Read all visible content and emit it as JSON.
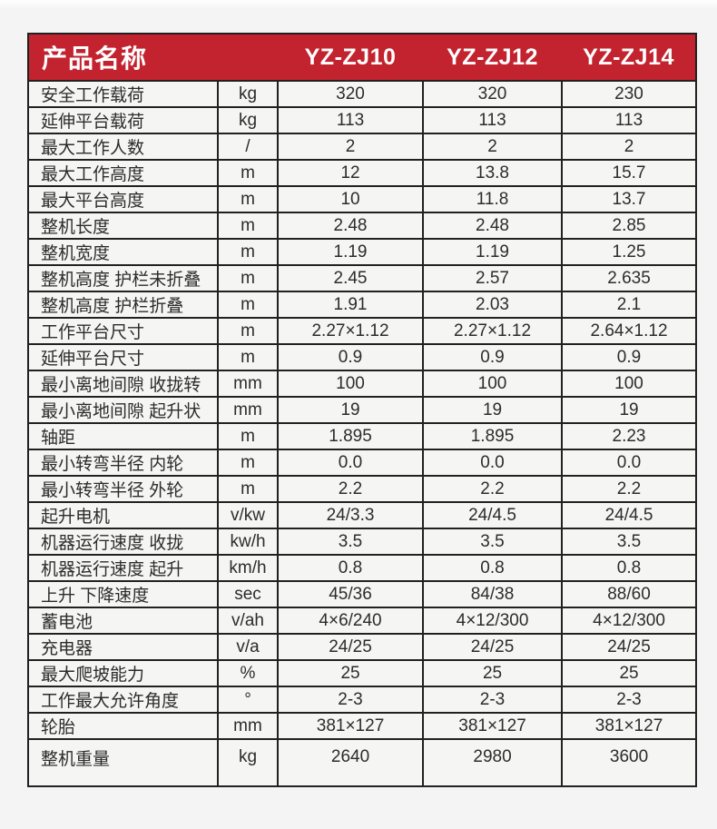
{
  "colors": {
    "header_bg": "#c2232f",
    "header_text": "#ffffff",
    "cell_text": "#2c2c2c",
    "border": "#212121",
    "page_bg": "#f3f4f3",
    "cell_bg": "#f5f5f4"
  },
  "table": {
    "header": {
      "title": "产品名称",
      "models": [
        "YZ-ZJ10",
        "YZ-ZJ12",
        "YZ-ZJ14"
      ]
    },
    "rows": [
      {
        "label": "安全工作载荷",
        "unit": "kg",
        "values": [
          "320",
          "320",
          "230"
        ]
      },
      {
        "label": "延伸平台载荷",
        "unit": "kg",
        "values": [
          "113",
          "113",
          "113"
        ]
      },
      {
        "label": "最大工作人数",
        "unit": "/",
        "values": [
          "2",
          "2",
          "2"
        ]
      },
      {
        "label": "最大工作高度",
        "unit": "m",
        "values": [
          "12",
          "13.8",
          "15.7"
        ]
      },
      {
        "label": "最大平台高度",
        "unit": "m",
        "values": [
          "10",
          "11.8",
          "13.7"
        ]
      },
      {
        "label": "整机长度",
        "unit": "m",
        "values": [
          "2.48",
          "2.48",
          "2.85"
        ]
      },
      {
        "label": "整机宽度",
        "unit": "m",
        "values": [
          "1.19",
          "1.19",
          "1.25"
        ]
      },
      {
        "label": "整机高度 护栏未折叠",
        "unit": "m",
        "values": [
          "2.45",
          "2.57",
          "2.635"
        ]
      },
      {
        "label": "整机高度 护栏折叠",
        "unit": "m",
        "values": [
          "1.91",
          "2.03",
          "2.1"
        ]
      },
      {
        "label": "工作平台尺寸",
        "unit": "m",
        "values": [
          "2.27×1.12",
          "2.27×1.12",
          "2.64×1.12"
        ]
      },
      {
        "label": "延伸平台尺寸",
        "unit": "m",
        "values": [
          "0.9",
          "0.9",
          "0.9"
        ]
      },
      {
        "label": "最小离地间隙 收拢转",
        "unit": "mm",
        "values": [
          "100",
          "100",
          "100"
        ]
      },
      {
        "label": "最小离地间隙 起升状",
        "unit": "mm",
        "values": [
          "19",
          "19",
          "19"
        ]
      },
      {
        "label": "轴距",
        "unit": "m",
        "values": [
          "1.895",
          "1.895",
          "2.23"
        ]
      },
      {
        "label": "最小转弯半径 内轮",
        "unit": "m",
        "values": [
          "0.0",
          "0.0",
          "0.0"
        ]
      },
      {
        "label": "最小转弯半径 外轮",
        "unit": "m",
        "values": [
          "2.2",
          "2.2",
          "2.2"
        ]
      },
      {
        "label": "起升电机",
        "unit": "v/kw",
        "values": [
          "24/3.3",
          "24/4.5",
          "24/4.5"
        ]
      },
      {
        "label": "机器运行速度 收拢",
        "unit": "kw/h",
        "values": [
          "3.5",
          "3.5",
          "3.5"
        ]
      },
      {
        "label": "机器运行速度 起升",
        "unit": "km/h",
        "values": [
          "0.8",
          "0.8",
          "0.8"
        ]
      },
      {
        "label": "上升 下降速度",
        "unit": "sec",
        "values": [
          "45/36",
          "84/38",
          "88/60"
        ]
      },
      {
        "label": "蓄电池",
        "unit": "v/ah",
        "values": [
          "4×6/240",
          "4×12/300",
          "4×12/300"
        ]
      },
      {
        "label": "充电器",
        "unit": "v/a",
        "values": [
          "24/25",
          "24/25",
          "24/25"
        ]
      },
      {
        "label": "最大爬坡能力",
        "unit": "%",
        "values": [
          "25",
          "25",
          "25"
        ]
      },
      {
        "label": "工作最大允许角度",
        "unit": "°",
        "values": [
          "2-3",
          "2-3",
          "2-3"
        ]
      },
      {
        "label": "轮胎",
        "unit": "mm",
        "values": [
          "381×127",
          "381×127",
          "381×127"
        ]
      },
      {
        "label": "整机重量",
        "unit": "kg",
        "values": [
          "2640",
          "2980",
          "3600"
        ]
      }
    ]
  }
}
